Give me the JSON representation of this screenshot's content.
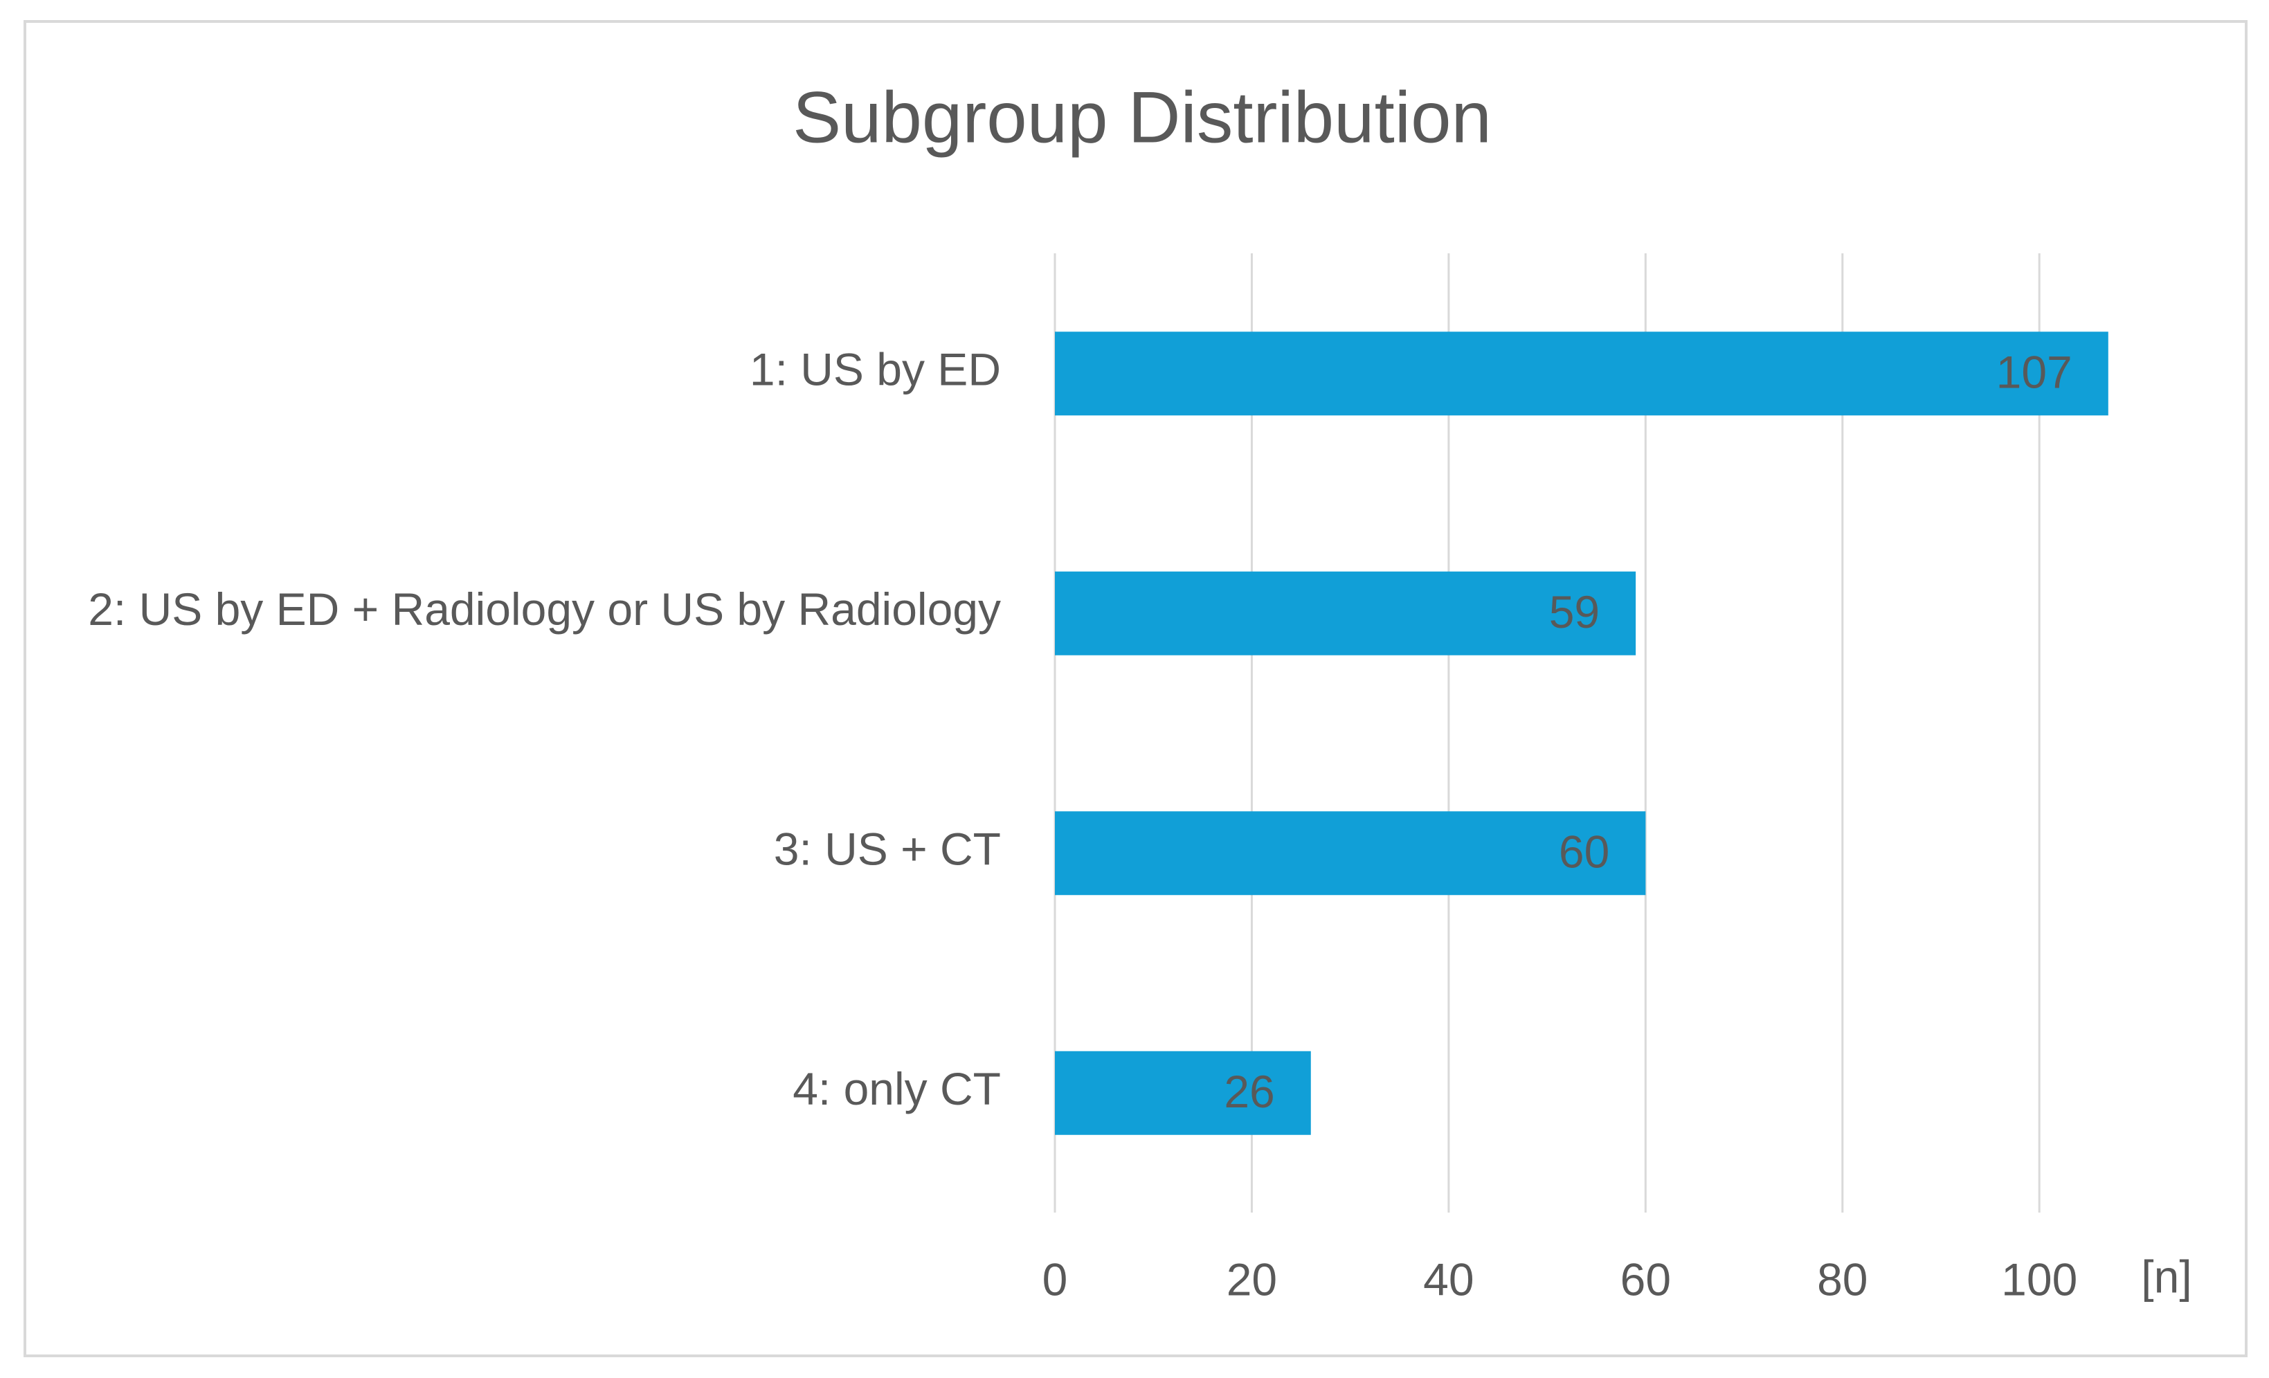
{
  "chart_data": {
    "type": "bar",
    "orientation": "horizontal",
    "title": "Subgroup Distribution",
    "categories": [
      "1: US by ED",
      "2: US by ED + Radiology or US by Radiology",
      "3: US + CT",
      "4: only CT"
    ],
    "values": [
      107,
      59,
      60,
      26
    ],
    "color": "#119fd7",
    "x_label": "[n]",
    "xlim": [
      0,
      108
    ],
    "xticks": [
      0,
      20,
      40,
      60,
      80,
      100
    ],
    "grid": true
  }
}
